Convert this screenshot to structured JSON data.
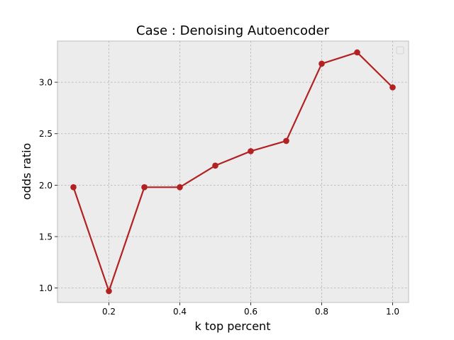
{
  "chart_data": {
    "type": "line",
    "title": "Case : Denoising Autoencoder",
    "xlabel": "k top percent",
    "ylabel": "odds ratio",
    "x": [
      0.1,
      0.2,
      0.3,
      0.4,
      0.5,
      0.6,
      0.7,
      0.8,
      0.9,
      1.0
    ],
    "series": [
      {
        "values": [
          1.98,
          0.97,
          1.98,
          1.98,
          2.19,
          2.33,
          2.43,
          3.18,
          3.29,
          2.95
        ]
      }
    ],
    "xlim": [
      0.055,
      1.045
    ],
    "ylim": [
      0.86,
      3.4
    ],
    "xticks": [
      0.2,
      0.4,
      0.6,
      0.8,
      1.0
    ],
    "xtick_labels": [
      "0.2",
      "0.4",
      "0.6",
      "0.8",
      "1.0"
    ],
    "yticks": [
      1.0,
      1.5,
      2.0,
      2.5,
      3.0
    ],
    "ytick_labels": [
      "1.0",
      "1.5",
      "2.0",
      "2.5",
      "3.0"
    ],
    "grid": true,
    "legend": "top-right",
    "colors": {
      "line": "#b22222",
      "plot_background": "#ececec",
      "grid": "#b0b0b0",
      "spine": "#bcbcbc"
    }
  }
}
